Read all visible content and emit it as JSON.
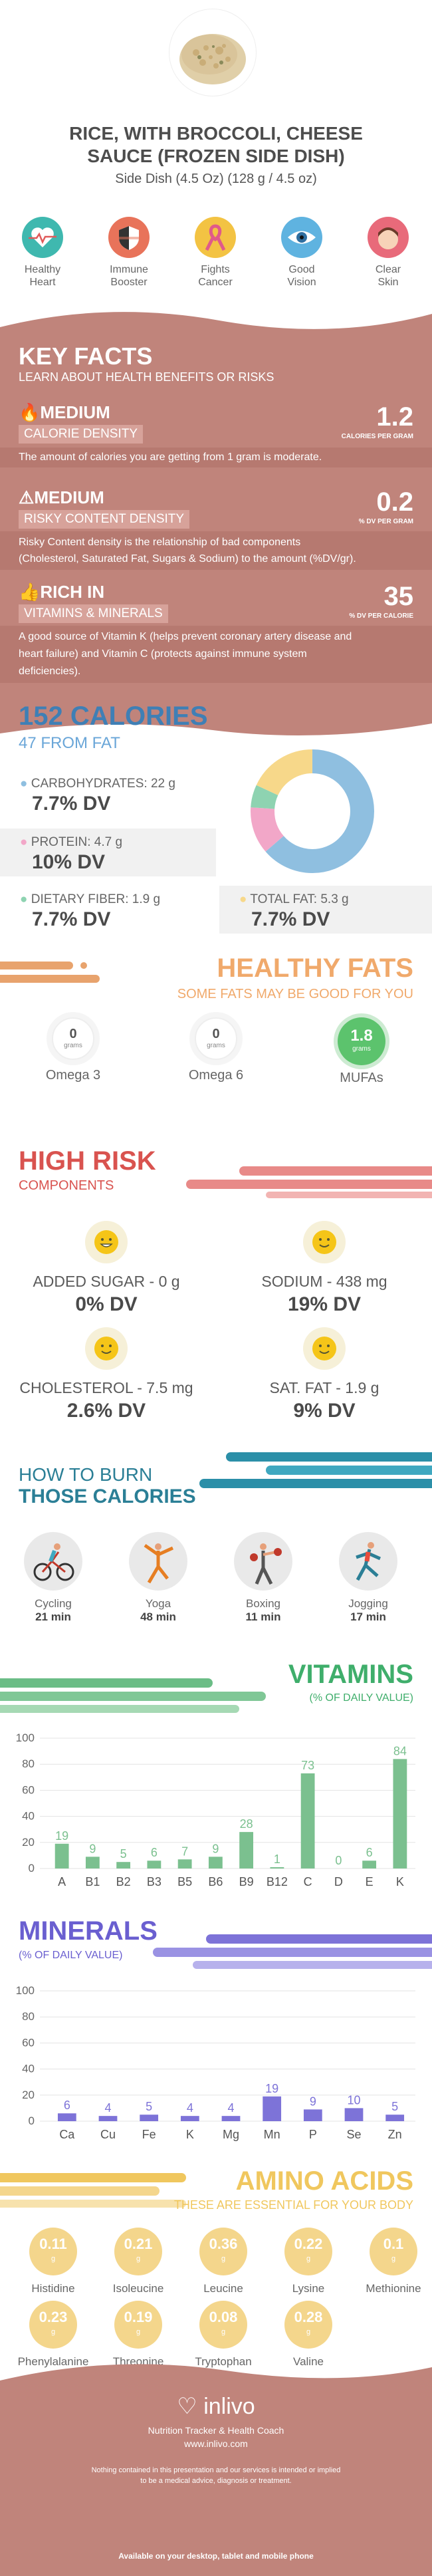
{
  "header": {
    "title_line1": "RICE, WITH BROCCOLI, CHEESE",
    "title_line2": "SAUCE (FROZEN SIDE DISH)",
    "serving": "Side Dish (4.5 Oz) (128 g / 4.5 oz)"
  },
  "benefits": [
    {
      "label1": "Healthy",
      "label2": "Heart",
      "color": "#3fb8af",
      "icon": "heart-pulse-icon"
    },
    {
      "label1": "Immune",
      "label2": "Booster",
      "color": "#e8735a",
      "icon": "shield-icon"
    },
    {
      "label1": "Fights",
      "label2": "Cancer",
      "color": "#f3c343",
      "icon": "ribbon-icon"
    },
    {
      "label1": "Good",
      "label2": "Vision",
      "color": "#5fb3e0",
      "icon": "eye-icon"
    },
    {
      "label1": "Clear",
      "label2": "Skin",
      "color": "#e86a7a",
      "icon": "face-icon"
    }
  ],
  "key_facts": {
    "title": "KEY FACTS",
    "subtitle": "LEARN ABOUT HEALTH BENEFITS OR RISKS",
    "calorie": {
      "level": "MEDIUM",
      "name": "CALORIE DENSITY",
      "value": "1.2",
      "unit": "CALORIES PER GRAM",
      "desc": "The amount of calories you are getting from 1 gram is moderate."
    },
    "risky": {
      "level": "MEDIUM",
      "name": "RISKY CONTENT DENSITY",
      "value": "0.2",
      "unit": "% DV PER GRAM",
      "desc1": "Risky Content density is the relationship of bad components",
      "desc2": "(Cholesterol, Saturated Fat, Sugars & Sodium) to the amount (%DV/gr)."
    },
    "rich": {
      "level": "RICH  IN",
      "name": "VITAMINS & MINERALS",
      "value": "35",
      "unit": "% DV PER CALORIE",
      "desc1": "A good source of Vitamin K (helps prevent coronary artery disease and",
      "desc2": "heart failure) and Vitamin C (protects against immune system",
      "desc3": "deficiencies)."
    }
  },
  "calories": {
    "title": "152 CALORIES",
    "from_fat": "47 FROM FAT",
    "carbs": {
      "label": "CARBOHYDRATES: 22 g",
      "dv": "7.7% DV",
      "color": "#8fbfe0"
    },
    "protein": {
      "label": "PROTEIN: 4.7 g",
      "dv": "10% DV",
      "color": "#f2a7c8"
    },
    "fiber": {
      "label": "DIETARY FIBER: 1.9 g",
      "dv": "7.7% DV",
      "color": "#8ed3b1"
    },
    "fat": {
      "label": "TOTAL FAT: 5.3 g",
      "dv": "7.7% DV",
      "color": "#f7d88a"
    }
  },
  "healthy_fats": {
    "title": "HEALTHY FATS",
    "subtitle": "SOME FATS MAY BE GOOD FOR YOU",
    "items": [
      {
        "value": "0",
        "unit": "grams",
        "name": "Omega 3"
      },
      {
        "value": "0",
        "unit": "grams",
        "name": "Omega 6"
      },
      {
        "value": "1.8",
        "unit": "grams",
        "name": "MUFAs"
      }
    ]
  },
  "high_risk": {
    "title": "HIGH RISK",
    "subtitle": "COMPONENTS",
    "items": [
      {
        "label": "ADDED SUGAR - 0 g",
        "dv": "0% DV"
      },
      {
        "label": "SODIUM - 438 mg",
        "dv": "19% DV"
      },
      {
        "label": "CHOLESTEROL - 7.5 mg",
        "dv": "2.6% DV"
      },
      {
        "label": "SAT. FAT - 1.9 g",
        "dv": "9% DV"
      }
    ]
  },
  "burn": {
    "title1": "HOW TO BURN",
    "title2": "THOSE CALORIES",
    "items": [
      {
        "name": "Cycling",
        "time": "21 min",
        "icon": "cycling-icon"
      },
      {
        "name": "Yoga",
        "time": "48 min",
        "icon": "yoga-icon"
      },
      {
        "name": "Boxing",
        "time": "11 min",
        "icon": "boxing-icon"
      },
      {
        "name": "Jogging",
        "time": "17 min",
        "icon": "jogging-icon"
      }
    ]
  },
  "vitamins_header": {
    "title": "VITAMINS",
    "subtitle": "(% OF DAILY VALUE)"
  },
  "minerals_header": {
    "title": "MINERALS",
    "subtitle": "(% OF DAILY VALUE)"
  },
  "chart_data": [
    {
      "type": "bar",
      "categories": [
        "A",
        "B1",
        "B2",
        "B3",
        "B5",
        "B6",
        "B9",
        "B12",
        "C",
        "D",
        "E",
        "K"
      ],
      "values": [
        19,
        9,
        5,
        6,
        7,
        9,
        28,
        1,
        73,
        0,
        6,
        84
      ],
      "labels": [
        "19",
        "9",
        "5",
        "6",
        "7",
        "9",
        "28",
        "1",
        "73",
        "0",
        "6",
        "84"
      ],
      "ylim": [
        0,
        100
      ],
      "yticks": [
        "0",
        "20",
        "40",
        "60",
        "80",
        "100"
      ],
      "color": "#7bc08f",
      "label_color": "#7bc08f"
    },
    {
      "type": "bar",
      "categories": [
        "Ca",
        "Cu",
        "Fe",
        "K",
        "Mg",
        "Mn",
        "P",
        "Se",
        "Zn"
      ],
      "values": [
        6,
        4,
        5,
        4,
        4,
        19,
        9,
        10,
        5
      ],
      "labels": [
        "6",
        "4",
        "5",
        "4",
        "4",
        "19",
        "9",
        "10",
        "5"
      ],
      "ylim": [
        0,
        100
      ],
      "yticks": [
        "0",
        "20",
        "40",
        "60",
        "80",
        "100"
      ],
      "color": "#7d73d8",
      "label_color": "#7d73d8"
    }
  ],
  "amino": {
    "title": "AMINO ACIDS",
    "subtitle": "THESE ARE ESSENTIAL FOR YOUR BODY",
    "unit": "g",
    "items": [
      {
        "value": "0.11",
        "name": "Histidine"
      },
      {
        "value": "0.21",
        "name": "Isoleucine"
      },
      {
        "value": "0.36",
        "name": "Leucine"
      },
      {
        "value": "0.22",
        "name": "Lysine"
      },
      {
        "value": "0.1",
        "name": "Methionine"
      },
      {
        "value": "0.23",
        "name": "Phenylalanine"
      },
      {
        "value": "0.19",
        "name": "Threonine"
      },
      {
        "value": "0.08",
        "name": "Tryptophan"
      },
      {
        "value": "0.28",
        "name": "Valine"
      }
    ]
  },
  "footer": {
    "brand": "inlivo",
    "tagline": "Nutrition Tracker & Health Coach",
    "url": "www.inlivo.com",
    "disclaimer1": "Nothing contained in this presentation and our services is intended or implied",
    "disclaimer2": "to be a medical advice, diagnosis or treatment.",
    "available": "Available on your desktop, tablet and mobile phone"
  }
}
